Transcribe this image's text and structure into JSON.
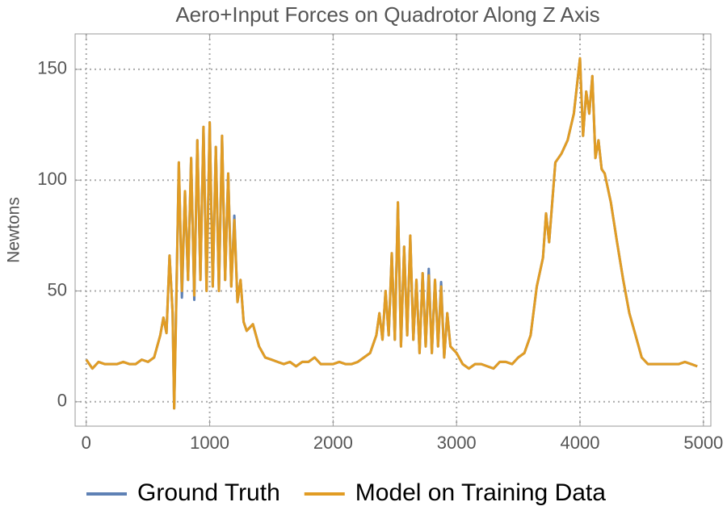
{
  "chart_data": {
    "type": "line",
    "title": "Aero+Input Forces on Quadrotor Along Z Axis",
    "y_label": "Newtons",
    "x": [
      0,
      50,
      100,
      150,
      200,
      250,
      300,
      350,
      400,
      450,
      500,
      550,
      600,
      625,
      650,
      675,
      700,
      712,
      725,
      750,
      775,
      800,
      825,
      850,
      875,
      900,
      925,
      950,
      975,
      1000,
      1025,
      1050,
      1075,
      1100,
      1125,
      1150,
      1175,
      1200,
      1225,
      1250,
      1275,
      1300,
      1350,
      1400,
      1450,
      1500,
      1550,
      1600,
      1650,
      1700,
      1750,
      1800,
      1850,
      1900,
      1950,
      2000,
      2050,
      2100,
      2150,
      2200,
      2250,
      2300,
      2350,
      2375,
      2400,
      2425,
      2450,
      2475,
      2500,
      2525,
      2550,
      2575,
      2600,
      2625,
      2650,
      2675,
      2700,
      2725,
      2750,
      2775,
      2800,
      2825,
      2850,
      2875,
      2900,
      2925,
      2950,
      3000,
      3050,
      3100,
      3150,
      3200,
      3250,
      3300,
      3350,
      3400,
      3450,
      3500,
      3550,
      3600,
      3650,
      3700,
      3725,
      3750,
      3800,
      3850,
      3900,
      3950,
      4000,
      4025,
      4050,
      4075,
      4100,
      4125,
      4150,
      4175,
      4200,
      4250,
      4300,
      4350,
      4400,
      4450,
      4500,
      4550,
      4600,
      4650,
      4700,
      4750,
      4800,
      4850,
      4900,
      4950
    ],
    "series": [
      {
        "name": "Ground Truth",
        "color": "#5e81b5",
        "values": [
          19,
          15,
          18,
          17,
          17,
          17,
          18,
          17,
          17,
          19,
          18,
          20,
          30,
          38,
          31,
          66,
          40,
          -3,
          32,
          108,
          47,
          95,
          55,
          110,
          46,
          118,
          55,
          124,
          50,
          126,
          52,
          115,
          50,
          120,
          55,
          103,
          52,
          84,
          45,
          55,
          36,
          32,
          35,
          25,
          20,
          19,
          18,
          17,
          18,
          16,
          18,
          18,
          20,
          17,
          17,
          17,
          18,
          17,
          17,
          18,
          20,
          22,
          30,
          40,
          28,
          50,
          30,
          67,
          28,
          90,
          25,
          70,
          30,
          75,
          28,
          55,
          22,
          58,
          25,
          60,
          22,
          55,
          25,
          54,
          20,
          40,
          25,
          22,
          17,
          15,
          17,
          17,
          16,
          15,
          18,
          18,
          17,
          20,
          22,
          30,
          52,
          65,
          85,
          72,
          108,
          112,
          118,
          130,
          155,
          120,
          140,
          130,
          147,
          110,
          118,
          105,
          103,
          90,
          72,
          55,
          40,
          30,
          20,
          17,
          17,
          17,
          17,
          17,
          17,
          18,
          17,
          16
        ]
      },
      {
        "name": "Model on Training Data",
        "color": "#e19c24",
        "values": [
          19,
          15,
          18,
          17,
          17,
          17,
          18,
          17,
          17,
          19,
          18,
          20,
          30,
          38,
          31,
          66,
          40,
          -3,
          30,
          108,
          50,
          95,
          55,
          110,
          48,
          118,
          55,
          124,
          50,
          126,
          52,
          115,
          50,
          120,
          55,
          103,
          52,
          82,
          45,
          55,
          36,
          32,
          35,
          25,
          20,
          19,
          18,
          17,
          18,
          16,
          18,
          18,
          20,
          17,
          17,
          17,
          18,
          17,
          17,
          18,
          20,
          22,
          30,
          40,
          28,
          50,
          30,
          67,
          28,
          90,
          25,
          70,
          30,
          75,
          28,
          55,
          22,
          58,
          25,
          57,
          22,
          55,
          25,
          52,
          20,
          40,
          25,
          22,
          17,
          15,
          17,
          17,
          16,
          15,
          18,
          18,
          17,
          20,
          22,
          30,
          52,
          65,
          85,
          72,
          108,
          112,
          118,
          130,
          155,
          120,
          140,
          130,
          147,
          110,
          118,
          105,
          103,
          90,
          72,
          55,
          40,
          30,
          20,
          17,
          17,
          17,
          17,
          17,
          17,
          18,
          17,
          16
        ]
      }
    ],
    "xlim": [
      -90,
      5060
    ],
    "ylim": [
      -11,
      166
    ],
    "xticks": [
      0,
      1000,
      2000,
      3000,
      4000,
      5000
    ],
    "yticks": [
      0,
      50,
      100,
      150
    ],
    "grid": true,
    "legend": "bottom"
  }
}
